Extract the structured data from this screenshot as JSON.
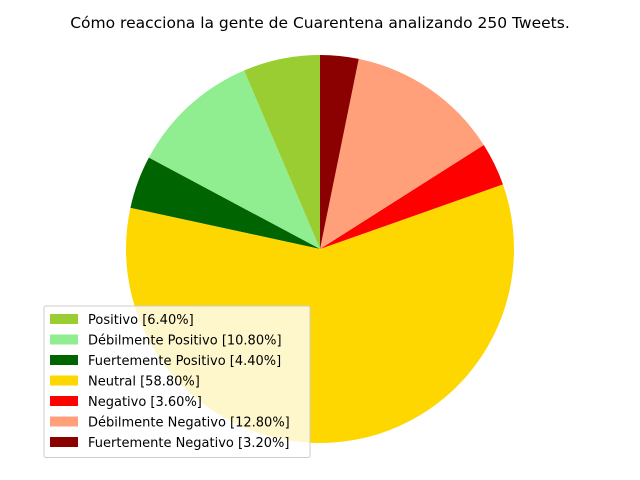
{
  "chart_data": {
    "type": "pie",
    "title": "Cómo reacciona la gente de Cuarentena analizando 250 Tweets.",
    "start_angle_deg": 90,
    "direction": "counterclockwise",
    "legend_position": "lower-left",
    "slices": [
      {
        "label": "Positivo [6.40%]",
        "value": 6.4,
        "color": "#9acd32"
      },
      {
        "label": "Débilmente Positivo [10.80%]",
        "value": 10.8,
        "color": "#90ee90"
      },
      {
        "label": "Fuertemente Positivo [4.40%]",
        "value": 4.4,
        "color": "#006400"
      },
      {
        "label": "Neutral [58.80%]",
        "value": 58.8,
        "color": "#ffd700"
      },
      {
        "label": "Negativo [3.60%]",
        "value": 3.6,
        "color": "#ff0000"
      },
      {
        "label": "Débilmente Negativo [12.80%]",
        "value": 12.8,
        "color": "#ffa07a"
      },
      {
        "label": "Fuertemente Negativo [3.20%]",
        "value": 3.2,
        "color": "#8b0000"
      }
    ]
  }
}
